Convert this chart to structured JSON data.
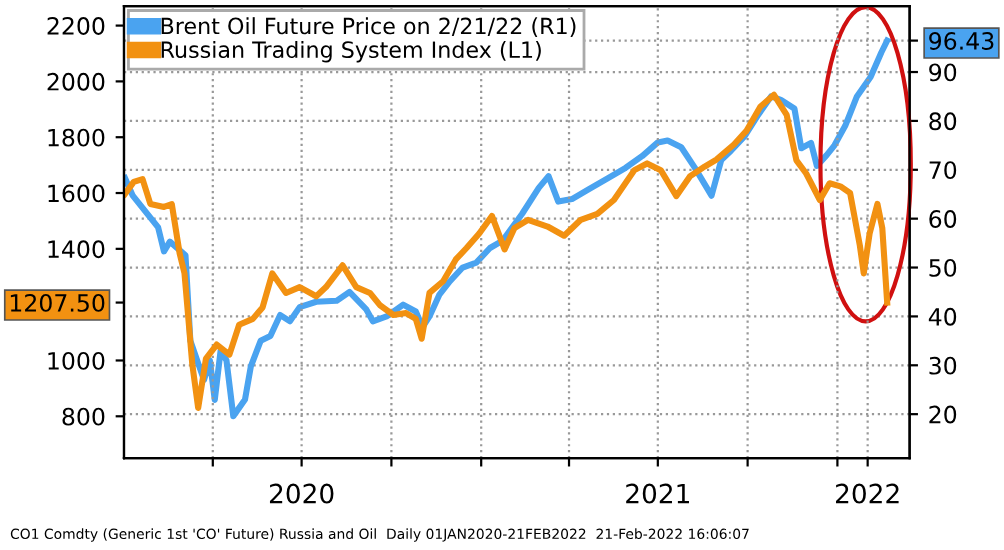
{
  "chart_data": {
    "type": "line",
    "x": [
      "2020-01-02",
      "2020-01-10",
      "2020-02-05",
      "2020-02-11",
      "2020-02-17",
      "2020-03-04",
      "2020-03-09",
      "2020-03-16",
      "2020-03-23",
      "2020-03-29",
      "2020-04-03",
      "2020-04-09",
      "2020-04-15",
      "2020-04-22",
      "2020-05-04",
      "2020-05-10",
      "2020-05-20",
      "2020-05-30",
      "2020-06-09",
      "2020-06-19",
      "2020-06-29",
      "2020-07-16",
      "2020-08-06",
      "2020-08-19",
      "2020-09-05",
      "2020-09-12",
      "2020-09-26",
      "2020-10-13",
      "2020-10-26",
      "2020-11-02",
      "2020-11-09",
      "2020-11-19",
      "2020-11-30",
      "2020-12-13",
      "2020-12-27",
      "2021-01-10",
      "2021-01-23",
      "2021-02-12",
      "2021-03-01",
      "2021-03-11",
      "2021-03-21",
      "2021-04-04",
      "2021-04-21",
      "2021-05-11",
      "2021-05-29",
      "2021-06-15",
      "2021-07-01",
      "2021-07-11",
      "2021-07-25",
      "2021-08-08",
      "2021-08-25",
      "2021-09-04",
      "2021-09-14",
      "2021-09-28",
      "2021-10-11",
      "2021-10-25",
      "2021-11-04",
      "2021-11-18",
      "2021-11-25",
      "2021-12-05",
      "2021-12-11",
      "2021-12-21",
      "2021-12-29",
      "2022-01-09",
      "2022-01-21",
      "2022-02-04",
      "2022-02-15",
      "2022-02-21"
    ],
    "series": [
      {
        "name": "Brent Oil Future Price on 2/21/22 (R1)",
        "color": "#4aa3f0",
        "axis": "y2",
        "values": [
          68.3,
          64.7,
          58.2,
          53.3,
          55.3,
          52.5,
          35,
          31,
          27,
          31,
          22.9,
          33,
          31,
          19.6,
          23,
          29.8,
          35,
          36,
          40.3,
          39,
          41.9,
          43,
          43.2,
          45,
          41.5,
          39,
          40,
          42.4,
          41,
          37.8,
          40,
          44.4,
          47.2,
          50,
          51,
          54,
          55.5,
          61,
          66.3,
          68.7,
          63.5,
          64,
          66,
          68.3,
          70.4,
          72.8,
          75.6,
          76,
          74.6,
          70.4,
          64.7,
          72,
          73.9,
          76.9,
          81,
          85,
          84.3,
          82.5,
          74.4,
          75.5,
          70.8,
          73,
          75,
          79,
          85,
          89,
          94,
          96.43
        ]
      },
      {
        "name": "Russian Trading System Index (L1)",
        "color": "#f29111",
        "x": [
          "2020-01-02",
          "2020-01-11",
          "2020-01-20",
          "2020-01-28",
          "2020-02-11",
          "2020-02-19",
          "2020-02-27",
          "2020-03-03",
          "2020-03-11",
          "2020-03-17",
          "2020-03-25",
          "2020-04-05",
          "2020-04-18",
          "2020-04-28",
          "2020-05-12",
          "2020-05-22",
          "2020-06-01",
          "2020-06-15",
          "2020-06-29",
          "2020-07-16",
          "2020-07-26",
          "2020-08-12",
          "2020-08-26",
          "2020-09-09",
          "2020-09-19",
          "2020-10-03",
          "2020-10-16",
          "2020-10-26",
          "2020-11-01",
          "2020-11-09",
          "2020-11-23",
          "2020-12-06",
          "2020-12-17",
          "2020-12-30",
          "2021-01-12",
          "2021-01-25",
          "2021-02-04",
          "2021-02-18",
          "2021-03-10",
          "2021-03-27",
          "2021-04-13",
          "2021-04-30",
          "2021-05-17",
          "2021-06-07",
          "2021-06-20",
          "2021-07-04",
          "2021-07-20",
          "2021-08-03",
          "2021-08-18",
          "2021-08-30",
          "2021-09-17",
          "2021-09-30",
          "2021-10-14",
          "2021-10-28",
          "2021-11-10",
          "2021-11-20",
          "2021-11-30",
          "2021-12-14",
          "2021-12-24",
          "2022-01-04",
          "2022-01-14",
          "2022-01-24",
          "2022-01-28",
          "2022-02-03",
          "2022-02-11",
          "2022-02-16",
          "2022-02-21"
        ],
        "values": [
          1597,
          1640,
          1650,
          1561,
          1550,
          1560,
          1384,
          1312,
          986,
          830,
          1007,
          1057,
          1021,
          1128,
          1149,
          1190,
          1312,
          1242,
          1263,
          1230,
          1263,
          1341,
          1263,
          1242,
          1199,
          1163,
          1170,
          1149,
          1078,
          1242,
          1284,
          1362,
          1403,
          1455,
          1518,
          1398,
          1474,
          1504,
          1480,
          1447,
          1504,
          1525,
          1575,
          1682,
          1706,
          1682,
          1589,
          1660,
          1695,
          1720,
          1774,
          1824,
          1909,
          1952,
          1880,
          1717,
          1670,
          1575,
          1635,
          1624,
          1600,
          1412,
          1312,
          1455,
          1561,
          1474,
          1207.5
        ]
      }
    ],
    "xlim": [
      "2020-01-01",
      "2022-03-16"
    ],
    "xticks": [
      {
        "value": "2020-04-01",
        "label": null
      },
      {
        "value": "2020-07-01",
        "label": "2020"
      },
      {
        "value": "2020-10-01",
        "label": null
      },
      {
        "value": "2021-01-01",
        "label": null
      },
      {
        "value": "2021-04-01",
        "label": null
      },
      {
        "value": "2021-07-01",
        "label": "2021"
      },
      {
        "value": "2021-10-01",
        "label": null
      },
      {
        "value": "2022-01-01",
        "label": null
      },
      {
        "value": "2022-02-01",
        "label": "2022"
      }
    ],
    "ylim": [
      650,
      2270
    ],
    "yticks": [
      800,
      1000,
      {
        "value": 1207.5,
        "label": "1207.50"
      },
      1400,
      1600,
      1800,
      2000,
      2200
    ],
    "y2lim": [
      11,
      103.5
    ],
    "y2ticks": [
      20,
      30,
      40,
      50,
      60,
      70,
      80,
      90,
      {
        "value": 96.43,
        "label": "96.43"
      }
    ],
    "grid": true,
    "legend": "top left",
    "line_style": "solid",
    "marker": "none",
    "annotations": [
      "CO1 Comdty (Generic 1st 'CO' Future) Russia and Oil  Daily 01JAN2020-21FEB2022  21-Feb-2022 16:06:07"
    ]
  }
}
